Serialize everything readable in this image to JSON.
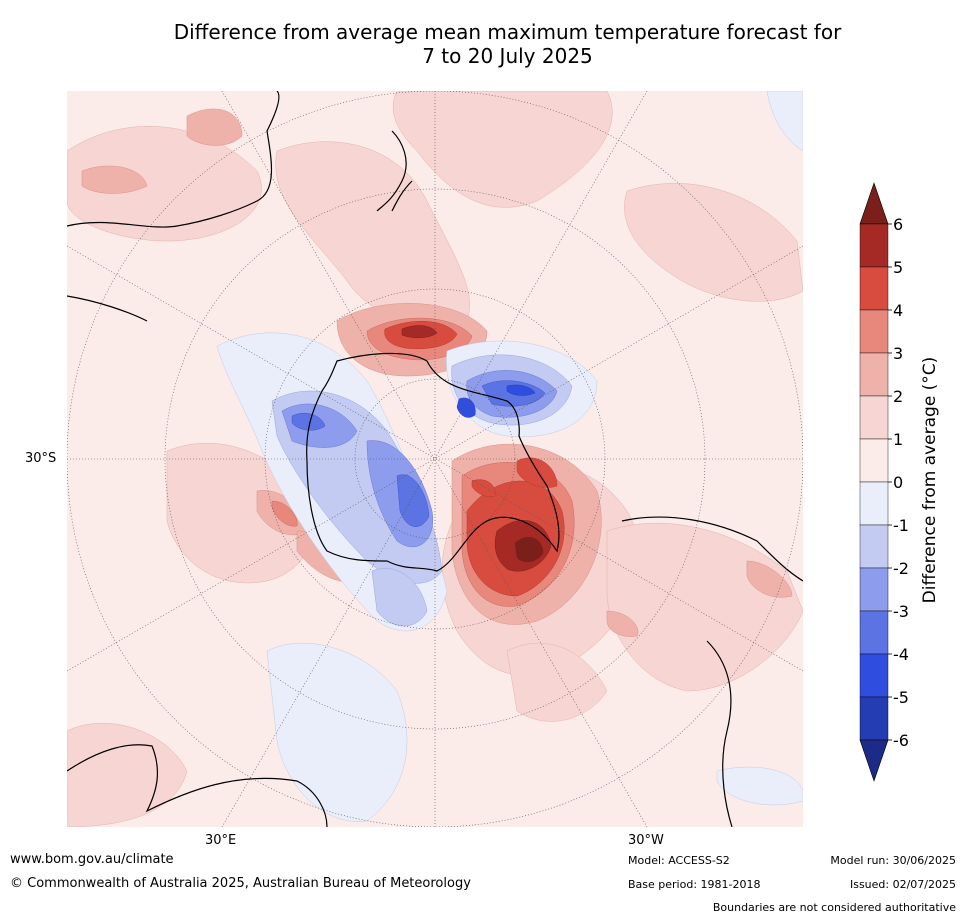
{
  "title": {
    "line1": "Difference from average mean maximum temperature forecast for",
    "line2": "7 to 20 July 2025"
  },
  "axis_labels": {
    "lat": "30°S",
    "lon_left": "30°E",
    "lon_right": "30°W"
  },
  "colorbar": {
    "label": "Difference from average (°C)",
    "ticks": [
      "6",
      "5",
      "4",
      "3",
      "2",
      "1",
      "0",
      "-1",
      "-2",
      "-3",
      "-4",
      "-5",
      "-6"
    ],
    "colors": [
      "#a52a25",
      "#d84c40",
      "#e8877c",
      "#efb2ab",
      "#f6d5d2",
      "#fbebe9",
      "#eaedfa",
      "#c3cbf2",
      "#8d9cec",
      "#5b73e3",
      "#2f4ee0",
      "#253db2"
    ],
    "over_color": "#7a1f1a",
    "under_color": "#1c2b87"
  },
  "footer": {
    "website": "www.bom.gov.au/climate",
    "copyright": "© Commonwealth of Australia 2025, Australian Bureau of Meteorology",
    "model": "Model: ACCESS-S2",
    "base_period": "Base period: 1981-2018",
    "model_run": "Model run: 30/06/2025",
    "issued": "Issued: 02/07/2025",
    "disclaimer": "Boundaries are not considered authoritative"
  }
}
